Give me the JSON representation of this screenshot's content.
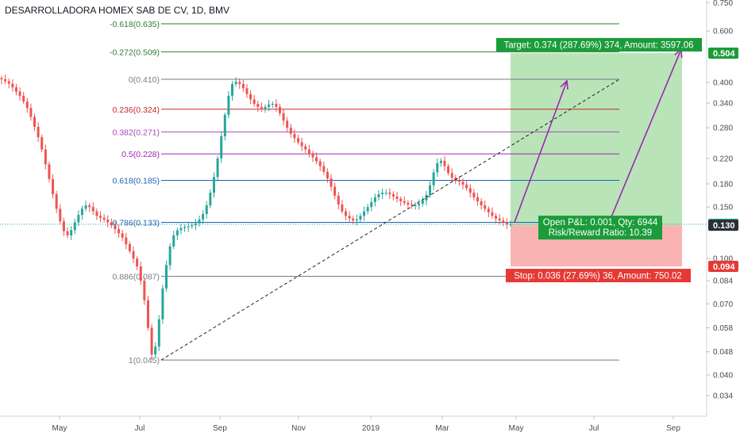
{
  "chart_data": {
    "type": "candlestick",
    "title": "DESARROLLADORA HOMEX SAB DE CV, 1D, BMV",
    "y_scale": "log",
    "y_ticks": [
      "0.750",
      "0.600",
      "0.400",
      "0.340",
      "0.280",
      "0.220",
      "0.180",
      "0.150",
      "0.100",
      "0.084",
      "0.070",
      "0.058",
      "0.048",
      "0.040",
      "0.034"
    ],
    "x_ticks": [
      "May",
      "Jul",
      "Sep",
      "Nov",
      "2019",
      "Mar",
      "May",
      "Jul",
      "Sep"
    ],
    "fib_levels": [
      {
        "label": "-0.618(0.635)",
        "value": 0.635,
        "color": "#2e7d32"
      },
      {
        "label": "-0.272(0.509)",
        "value": 0.509,
        "color": "#2e7d32"
      },
      {
        "label": "0(0.410)",
        "value": 0.41,
        "color": "#787b86"
      },
      {
        "label": "0.236(0.324)",
        "value": 0.324,
        "color": "#c62828"
      },
      {
        "label": "0.382(0.271)",
        "value": 0.271,
        "color": "#ab47bc"
      },
      {
        "label": "0.5(0.228)",
        "value": 0.228,
        "color": "#9c27b0"
      },
      {
        "label": "0.618(0.185)",
        "value": 0.185,
        "color": "#1e63b5"
      },
      {
        "label": "0.786(0.133)",
        "value": 0.133,
        "color": "#1e63b5"
      },
      {
        "label": "0.886(0.087)",
        "value": 0.087,
        "color": "#787b86"
      },
      {
        "label": "1(0.045)",
        "value": 0.045,
        "color": "#787b86"
      }
    ],
    "price_badges": [
      {
        "label": "0.504",
        "value": 0.504,
        "color": "#1b9c3a"
      },
      {
        "label": "0.131",
        "value": 0.131,
        "color": "#1aa39a"
      },
      {
        "label": "0.130",
        "value": 0.13,
        "color": "#2a2e39"
      },
      {
        "label": "0.094",
        "value": 0.094,
        "color": "#e53935"
      }
    ],
    "position": {
      "entry": 0.13,
      "target": 0.504,
      "stop": 0.094,
      "target_text": "Target: 0.374 (287.69%) 374, Amount: 3597.06",
      "stop_text": "Stop: 0.036 (27.69%) 36, Amount: 750.02",
      "pnl_text": "Open P&L: 0.001, Qty: 6944",
      "rr_text": "Risk/Reward Ratio: 10.39"
    },
    "last_price": 0.131,
    "series": [
      {
        "type": "candlestick",
        "close": [
          0.41,
          0.404,
          0.396,
          0.385,
          0.372,
          0.36,
          0.344,
          0.327,
          0.305,
          0.282,
          0.26,
          0.236,
          0.21,
          0.187,
          0.166,
          0.148,
          0.134,
          0.124,
          0.12,
          0.125,
          0.133,
          0.141,
          0.148,
          0.152,
          0.15,
          0.145,
          0.14,
          0.138,
          0.136,
          0.133,
          0.13,
          0.126,
          0.122,
          0.118,
          0.112,
          0.106,
          0.1,
          0.094,
          0.084,
          0.072,
          0.058,
          0.047,
          0.05,
          0.062,
          0.079,
          0.095,
          0.11,
          0.12,
          0.125,
          0.127,
          0.128,
          0.129,
          0.13,
          0.132,
          0.136,
          0.142,
          0.152,
          0.168,
          0.19,
          0.22,
          0.262,
          0.31,
          0.36,
          0.395,
          0.402,
          0.395,
          0.382,
          0.365,
          0.35,
          0.338,
          0.33,
          0.326,
          0.33,
          0.336,
          0.338,
          0.33,
          0.314,
          0.296,
          0.28,
          0.267,
          0.258,
          0.25,
          0.242,
          0.236,
          0.229,
          0.222,
          0.215,
          0.207,
          0.198,
          0.188,
          0.176,
          0.164,
          0.153,
          0.145,
          0.14,
          0.137,
          0.135,
          0.136,
          0.14,
          0.145,
          0.15,
          0.156,
          0.162,
          0.166,
          0.168,
          0.168,
          0.166,
          0.163,
          0.16,
          0.157,
          0.155,
          0.153,
          0.152,
          0.152,
          0.154,
          0.158,
          0.165,
          0.178,
          0.197,
          0.212,
          0.216,
          0.207,
          0.196,
          0.189,
          0.185,
          0.183,
          0.179,
          0.174,
          0.168,
          0.162,
          0.157,
          0.152,
          0.148,
          0.144,
          0.14,
          0.137,
          0.135,
          0.133,
          0.131,
          0.131
        ]
      }
    ]
  }
}
